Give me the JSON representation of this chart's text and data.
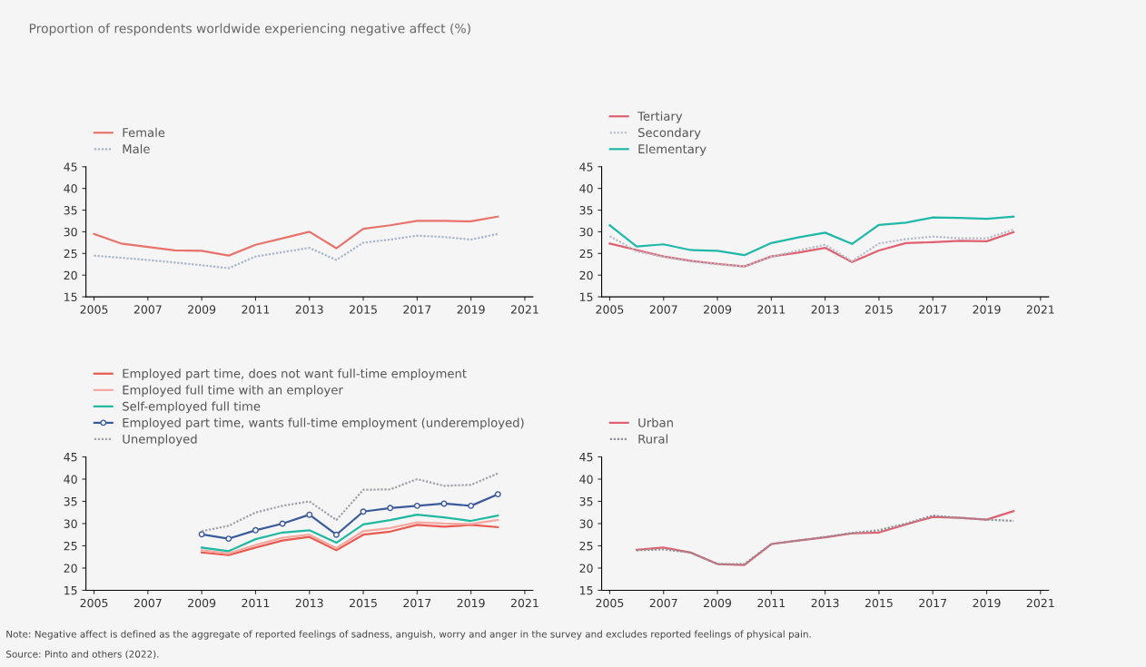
{
  "chart_data": [
    {
      "type": "line",
      "title": "Proportion of respondents worldwide experiencing negative affect (%)",
      "x": [
        2005,
        2006,
        2007,
        2008,
        2009,
        2010,
        2011,
        2012,
        2013,
        2014,
        2015,
        2016,
        2017,
        2018,
        2019,
        2020
      ],
      "xlim": [
        2004.7,
        2021.3
      ],
      "xticks": [
        2005,
        2007,
        2009,
        2011,
        2013,
        2015,
        2017,
        2019,
        2021
      ],
      "ylim": [
        15,
        45
      ],
      "yticks": [
        15,
        20,
        25,
        30,
        35,
        40,
        45
      ],
      "legend": "top left",
      "grid": false,
      "series": [
        {
          "name": "Female",
          "color": "#e8736b",
          "line_style": "solid",
          "values": [
            29.5,
            27.3,
            26.5,
            25.7,
            25.6,
            24.5,
            27.0,
            28.5,
            30.0,
            26.2,
            30.7,
            31.5,
            32.5,
            32.5,
            32.4,
            33.5
          ]
        },
        {
          "name": "Male",
          "color": "#a8b4c8",
          "line_style": "dotted",
          "values": [
            24.5,
            24.0,
            23.5,
            22.9,
            22.3,
            21.6,
            24.3,
            25.3,
            26.3,
            23.5,
            27.5,
            28.2,
            29.1,
            28.8,
            28.2,
            29.5
          ]
        }
      ]
    },
    {
      "type": "line",
      "x": [
        2005,
        2006,
        2007,
        2008,
        2009,
        2010,
        2011,
        2012,
        2013,
        2014,
        2015,
        2016,
        2017,
        2018,
        2019,
        2020
      ],
      "xlim": [
        2004.7,
        2021.3
      ],
      "xticks": [
        2005,
        2007,
        2009,
        2011,
        2013,
        2015,
        2017,
        2019,
        2021
      ],
      "ylim": [
        15,
        45
      ],
      "yticks": [
        15,
        20,
        25,
        30,
        35,
        40,
        45
      ],
      "legend": "top left",
      "grid": false,
      "series": [
        {
          "name": "Tertiary",
          "color": "#e06070",
          "line_style": "solid",
          "values": [
            27.3,
            25.8,
            24.3,
            23.3,
            22.6,
            22.0,
            24.3,
            25.2,
            26.3,
            23.0,
            25.7,
            27.4,
            27.6,
            27.9,
            27.8,
            29.9
          ]
        },
        {
          "name": "Secondary",
          "color": "#b8bcc8",
          "line_style": "dotted",
          "values": [
            29.0,
            25.5,
            24.2,
            23.2,
            22.5,
            22.0,
            24.2,
            25.7,
            27.0,
            23.2,
            27.3,
            28.3,
            28.9,
            28.5,
            28.5,
            30.5
          ]
        },
        {
          "name": "Elementary",
          "color": "#20b8a8",
          "line_style": "solid",
          "values": [
            31.5,
            26.6,
            27.1,
            25.8,
            25.6,
            24.6,
            27.4,
            28.7,
            29.8,
            27.2,
            31.6,
            32.1,
            33.3,
            33.2,
            33.0,
            33.5
          ]
        }
      ]
    },
    {
      "type": "line",
      "x": [
        2009,
        2010,
        2011,
        2012,
        2013,
        2014,
        2015,
        2016,
        2017,
        2018,
        2019,
        2020
      ],
      "xlim": [
        2004.7,
        2021.3
      ],
      "xticks": [
        2005,
        2007,
        2009,
        2011,
        2013,
        2015,
        2017,
        2019,
        2021
      ],
      "ylim": [
        15,
        45
      ],
      "yticks": [
        15,
        20,
        25,
        30,
        35,
        40,
        45
      ],
      "legend": "top left",
      "grid": false,
      "series": [
        {
          "name": "Employed part time, does not want full-time employment",
          "color": "#e85a50",
          "line_style": "solid",
          "values": [
            23.5,
            22.9,
            24.6,
            26.2,
            27.0,
            24.0,
            27.5,
            28.2,
            29.7,
            29.3,
            29.7,
            29.2
          ]
        },
        {
          "name": "Employed full time with an employer",
          "color": "#f4a8a0",
          "line_style": "solid",
          "values": [
            24.0,
            23.3,
            25.2,
            26.8,
            27.5,
            24.5,
            28.3,
            29.0,
            30.3,
            30.0,
            29.9,
            30.8
          ]
        },
        {
          "name": "Self-employed full time",
          "color": "#20b8a0",
          "line_style": "solid",
          "values": [
            24.6,
            23.8,
            26.5,
            28.0,
            28.5,
            25.7,
            29.8,
            30.8,
            32.0,
            31.4,
            30.6,
            31.8
          ]
        },
        {
          "name": "Employed part time, wants full-time employment (underemployed)",
          "color": "#3a5a9a",
          "line_style": "solid",
          "marker": "circle",
          "values": [
            27.6,
            26.6,
            28.5,
            30.0,
            32.0,
            27.5,
            32.7,
            33.5,
            34.0,
            34.5,
            34.0,
            36.6
          ]
        },
        {
          "name": "Unemployed",
          "color": "#a0a0a8",
          "line_style": "dotted",
          "values": [
            28.3,
            29.5,
            32.5,
            34.0,
            35.0,
            30.8,
            37.6,
            37.7,
            40.0,
            38.5,
            38.7,
            41.3
          ]
        }
      ]
    },
    {
      "type": "line",
      "x": [
        2006,
        2007,
        2008,
        2009,
        2010,
        2011,
        2012,
        2013,
        2014,
        2015,
        2016,
        2017,
        2018,
        2019,
        2020
      ],
      "xlim": [
        2004.7,
        2021.3
      ],
      "xticks": [
        2005,
        2007,
        2009,
        2011,
        2013,
        2015,
        2017,
        2019,
        2021
      ],
      "ylim": [
        15,
        45
      ],
      "yticks": [
        15,
        20,
        25,
        30,
        35,
        40,
        45
      ],
      "legend": "top left",
      "grid": false,
      "annotations": [
        "Note: Negative affect is defined as the aggregate of reported feelings of sadness, anguish, worry and anger in the survey and excludes reported feelings of physical pain.",
        "Source: Pinto and others (2022)."
      ],
      "series": [
        {
          "name": "Urban",
          "color": "#e06070",
          "line_style": "solid",
          "values": [
            24.1,
            24.6,
            23.5,
            20.9,
            20.7,
            25.4,
            26.2,
            26.9,
            27.8,
            28.0,
            29.8,
            31.5,
            31.3,
            30.9,
            32.8
          ]
        },
        {
          "name": "Rural",
          "color": "#909098",
          "line_style": "dotted",
          "values": [
            24.0,
            24.2,
            23.5,
            20.9,
            20.9,
            25.4,
            26.2,
            27.0,
            27.9,
            28.5,
            30.0,
            31.8,
            31.3,
            30.9,
            30.6
          ]
        }
      ]
    }
  ]
}
